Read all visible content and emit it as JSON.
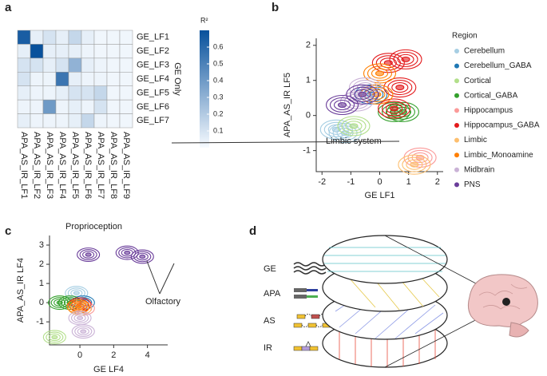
{
  "panel_labels": [
    "a",
    "b",
    "c",
    "d"
  ],
  "chart_data": [
    {
      "type": "heatmap",
      "ylabel": "GE Only",
      "colorbar_title": "R²",
      "x_categories": [
        "APA_AS_IR_LF1",
        "APA_AS_IR_LF2",
        "APA_AS_IR_LF3",
        "APA_AS_IR_LF4",
        "APA_AS_IR_LF5",
        "APA_AS_IR_LF6",
        "APA_AS_IR_LF7",
        "APA_AS_IR_LF8",
        "APA_AS_IR_LF9"
      ],
      "y_categories": [
        "GE_LF1",
        "GE_LF2",
        "GE_LF3",
        "GE_LF4",
        "GE_LF5",
        "GE_LF6",
        "GE_LF7"
      ],
      "values": [
        [
          0.65,
          0.05,
          0.1,
          0.05,
          0.15,
          0.05,
          0.02,
          0.02,
          0.02
        ],
        [
          0.05,
          0.7,
          0.05,
          0.05,
          0.05,
          0.03,
          0.02,
          0.02,
          0.02
        ],
        [
          0.1,
          0.1,
          0.05,
          0.1,
          0.3,
          0.05,
          0.03,
          0.02,
          0.02
        ],
        [
          0.1,
          0.03,
          0.03,
          0.55,
          0.05,
          0.03,
          0.03,
          0.02,
          0.02
        ],
        [
          0.05,
          0.03,
          0.03,
          0.05,
          0.1,
          0.1,
          0.15,
          0.02,
          0.02
        ],
        [
          0.03,
          0.03,
          0.4,
          0.03,
          0.05,
          0.03,
          0.1,
          0.02,
          0.02
        ],
        [
          0.05,
          0.03,
          0.03,
          0.03,
          0.05,
          0.15,
          0.03,
          0.02,
          0.02
        ]
      ],
      "zlim": [
        0,
        0.7
      ],
      "zticks": [
        0.1,
        0.2,
        0.3,
        0.4,
        0.5,
        0.6
      ],
      "color_low": "#f7fbff",
      "color_high": "#08519c"
    },
    {
      "type": "contour",
      "xlabel": "GE LF1",
      "ylabel": "APA_AS_IR LF5",
      "xlim": [
        -2.2,
        2.2
      ],
      "xticks": [
        -2,
        -1,
        0,
        1,
        2
      ],
      "ylim": [
        -1.6,
        2.2
      ],
      "yticks": [
        -1,
        0,
        1,
        2
      ],
      "legend": true,
      "legend_title": "Region",
      "annotations": [
        "Limbic system"
      ],
      "series": [
        {
          "name": "Cerebellum",
          "color": "#a6cee3",
          "x": [
            -1.5,
            -1.2
          ],
          "y": [
            -0.4,
            -0.5
          ]
        },
        {
          "name": "Cerebellum_GABA",
          "color": "#1f78b4",
          "x": [
            -0.3
          ],
          "y": [
            0.6
          ]
        },
        {
          "name": "Cortical",
          "color": "#b2df8a",
          "x": [
            -0.9
          ],
          "y": [
            -0.3
          ]
        },
        {
          "name": "Cortical_GABA",
          "color": "#33a02c",
          "x": [
            0.5,
            0.8
          ],
          "y": [
            0.1,
            0.1
          ]
        },
        {
          "name": "Hippocampus",
          "color": "#fb9a99",
          "x": [
            1.4
          ],
          "y": [
            -1.2
          ]
        },
        {
          "name": "Hippocampus_GABA",
          "color": "#e31a1c",
          "x": [
            0.3,
            0.7,
            0.5,
            0.9
          ],
          "y": [
            1.5,
            0.8,
            0.2,
            1.6
          ]
        },
        {
          "name": "Limbic",
          "color": "#fdbf6f",
          "x": [
            1.2
          ],
          "y": [
            -1.4
          ]
        },
        {
          "name": "Limbic_Monoamine",
          "color": "#ff7f00",
          "x": [
            0.0,
            -0.1
          ],
          "y": [
            1.2,
            0.6
          ]
        },
        {
          "name": "Midbrain",
          "color": "#cab2d6",
          "x": [
            -0.8,
            -0.5
          ],
          "y": [
            0.4,
            0.8
          ]
        },
        {
          "name": "PNS",
          "color": "#6a3d9a",
          "x": [
            -1.3,
            -0.6
          ],
          "y": [
            0.3,
            0.6
          ]
        }
      ]
    },
    {
      "type": "contour",
      "xlabel": "GE LF4",
      "ylabel": "APA_AS_IR LF4",
      "xlim": [
        -1.8,
        5.2
      ],
      "xticks": [
        0,
        2,
        4
      ],
      "ylim": [
        -2.2,
        3.5
      ],
      "yticks": [
        -1,
        0,
        1,
        2,
        3
      ],
      "legend": false,
      "annotations": [
        "Proprioception",
        "Olfactory"
      ],
      "series": [
        {
          "color": "#a6cee3",
          "x": [
            -0.2
          ],
          "y": [
            0.5
          ]
        },
        {
          "color": "#1f78b4",
          "x": [
            0.2
          ],
          "y": [
            0
          ]
        },
        {
          "color": "#b2df8a",
          "x": [
            -1.5
          ],
          "y": [
            -1.8
          ]
        },
        {
          "color": "#33a02c",
          "x": [
            -1.2,
            -0.6
          ],
          "y": [
            0,
            0
          ]
        },
        {
          "color": "#fb9a99",
          "x": [
            0.2
          ],
          "y": [
            -0.3
          ]
        },
        {
          "color": "#e31a1c",
          "x": [
            0
          ],
          "y": [
            -0.1
          ]
        },
        {
          "color": "#fdbf6f",
          "x": [
            0
          ],
          "y": [
            -0.3
          ]
        },
        {
          "color": "#ff7f00",
          "x": [
            -0.1
          ],
          "y": [
            -0.2
          ]
        },
        {
          "color": "#cab2d6",
          "x": [
            0,
            0.2
          ],
          "y": [
            -0.8,
            -1.5
          ]
        },
        {
          "color": "#6a3d9a",
          "x": [
            0.5,
            2.8,
            3.7
          ],
          "y": [
            2.5,
            2.6,
            2.4
          ]
        }
      ]
    }
  ],
  "diagram": {
    "labels": [
      "GE",
      "APA",
      "AS",
      "IR"
    ]
  }
}
